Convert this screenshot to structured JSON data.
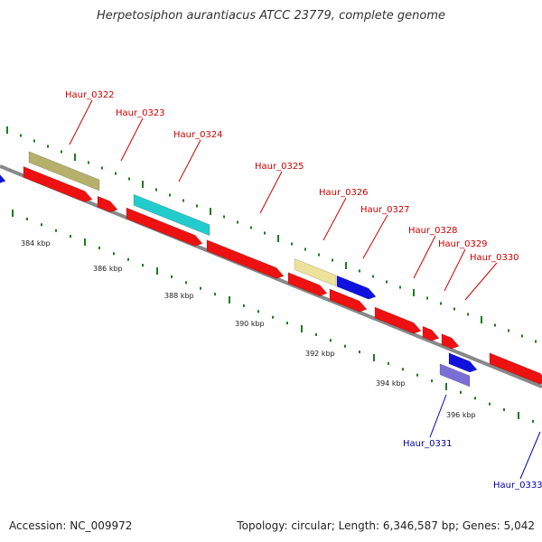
{
  "title": "Herpetosiphon aurantiacus ATCC 23779, complete genome",
  "footer": {
    "accession": "Accession: NC_009972",
    "summary": "Topology: circular; Length: 6,346,587 bp; Genes: 5,042"
  },
  "colors": {
    "backbone": "#888888",
    "tick": "#1f7a1f",
    "cds": "#ee1111",
    "khaki": "#b5b06a",
    "cyan": "#22cccc",
    "light_yellow": "#eee29a",
    "blue": "#1111dd",
    "lavender": "#7b6fd6",
    "label_red": "#cc0000",
    "label_blue": "#0000aa"
  },
  "kbp_ticks": [
    "384 kbp",
    "386 kbp",
    "388 kbp",
    "390 kbp",
    "392 kbp",
    "394 kbp",
    "396 kbp"
  ],
  "genes": [
    {
      "label": "Haur_0322",
      "color": "khaki",
      "label_color": "label_red"
    },
    {
      "label": "Haur_0323",
      "color": "cds",
      "label_color": "label_red"
    },
    {
      "label": "Haur_0324",
      "color": "cyan",
      "label_color": "label_red"
    },
    {
      "label": "Haur_0325",
      "color": "cds",
      "label_color": "label_red"
    },
    {
      "label": "Haur_0326",
      "color": "light_yellow",
      "label_color": "label_red"
    },
    {
      "label": "Haur_0327",
      "color": "blue",
      "label_color": "label_red"
    },
    {
      "label": "Haur_0328",
      "color": "cds",
      "label_color": "label_red"
    },
    {
      "label": "Haur_0329",
      "color": "cds",
      "label_color": "label_red"
    },
    {
      "label": "Haur_0330",
      "color": "cds",
      "label_color": "label_red"
    },
    {
      "label": "Haur_0331",
      "color": "lavender",
      "label_color": "label_blue"
    },
    {
      "label": "Haur_0333",
      "color": "blue",
      "label_color": "label_blue"
    }
  ]
}
